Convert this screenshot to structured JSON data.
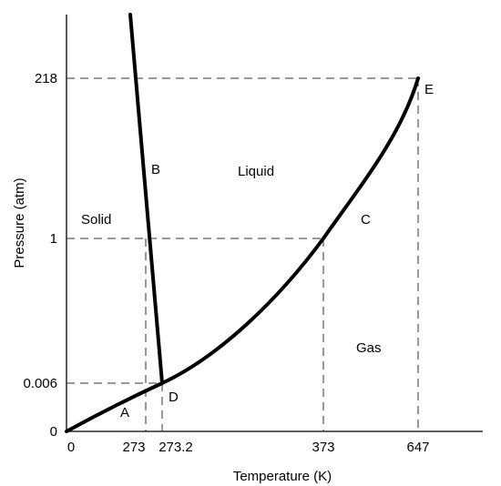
{
  "chart_data": {
    "type": "line",
    "title": "",
    "xlabel": "Temperature (K)",
    "ylabel": "Pressure (atm)",
    "x_ticks": [
      {
        "value": 0,
        "label": "0"
      },
      {
        "value": 273,
        "label": "273"
      },
      {
        "value": 273.2,
        "label": "273.2"
      },
      {
        "value": 373,
        "label": "373"
      },
      {
        "value": 647,
        "label": "647"
      }
    ],
    "y_ticks": [
      {
        "value": 0,
        "label": "0"
      },
      {
        "value": 0.006,
        "label": "0.006"
      },
      {
        "value": 1,
        "label": "1"
      },
      {
        "value": 218,
        "label": "218"
      }
    ],
    "grid": false,
    "series": [
      {
        "role": "solid-gas boundary",
        "points": [
          [
            0,
            0
          ],
          [
            273.2,
            0.006
          ]
        ]
      },
      {
        "role": "liquid-gas boundary",
        "points": [
          [
            273.2,
            0.006
          ],
          [
            373,
            1
          ],
          [
            647,
            218
          ]
        ]
      },
      {
        "role": "solid-liquid boundary",
        "points": [
          [
            273.2,
            0.006
          ],
          [
            273,
            1
          ]
        ]
      }
    ],
    "point_labels": [
      {
        "text": "A",
        "x": 200,
        "y": 0.003
      },
      {
        "text": "B",
        "x": 273,
        "y": 12
      },
      {
        "text": "C",
        "x": 440,
        "y": 2
      },
      {
        "text": "D",
        "x": 273.2,
        "y": 0.006
      },
      {
        "text": "E",
        "x": 647,
        "y": 218
      }
    ],
    "region_labels": [
      "Solid",
      "Liquid",
      "Gas"
    ]
  }
}
